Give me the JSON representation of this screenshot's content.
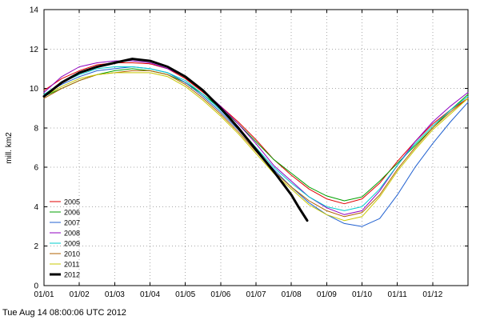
{
  "figure": {
    "timestamp": "Tue Aug 14 08:00:06 UTC 2012"
  },
  "chart_data": {
    "type": "line",
    "title": "",
    "xlabel": "",
    "ylabel": "mill. km2",
    "ylim": [
      0,
      14
    ],
    "ytick_step": 2,
    "xlim": [
      0,
      12
    ],
    "xtick_labels": [
      "01/01",
      "01/02",
      "01/03",
      "01/04",
      "01/05",
      "01/06",
      "01/07",
      "01/08",
      "01/09",
      "01/10",
      "01/11",
      "01/12"
    ],
    "grid": "dotted",
    "legend_position": "lower-left",
    "series": [
      {
        "name": "2005",
        "color": "#e00000",
        "width": 1,
        "x": [
          0,
          0.5,
          1,
          1.5,
          2,
          2.5,
          3,
          3.5,
          4,
          4.5,
          5,
          5.5,
          6,
          6.5,
          7,
          7.5,
          8,
          8.5,
          9,
          9.5,
          10,
          10.5,
          11,
          11.5,
          12
        ],
        "y": [
          9.9,
          10.5,
          10.9,
          11.2,
          11.3,
          11.3,
          11.25,
          11.0,
          10.5,
          9.8,
          9.1,
          8.3,
          7.4,
          6.4,
          5.6,
          4.9,
          4.4,
          4.15,
          4.4,
          5.2,
          6.3,
          7.3,
          8.2,
          8.9,
          9.5
        ]
      },
      {
        "name": "2006",
        "color": "#00a000",
        "width": 1,
        "x": [
          0,
          0.5,
          1,
          1.5,
          2,
          2.5,
          3,
          3.5,
          4,
          4.5,
          5,
          5.5,
          6,
          6.5,
          7,
          7.5,
          8,
          8.5,
          9,
          9.5,
          10,
          10.5,
          11,
          11.5,
          12
        ],
        "y": [
          9.6,
          10.0,
          10.4,
          10.7,
          10.9,
          11.0,
          10.9,
          10.7,
          10.3,
          9.7,
          9.0,
          8.2,
          7.3,
          6.4,
          5.7,
          5.0,
          4.55,
          4.3,
          4.5,
          5.3,
          6.2,
          7.1,
          8.0,
          8.9,
          9.7
        ]
      },
      {
        "name": "2007",
        "color": "#2060d0",
        "width": 1,
        "x": [
          0,
          0.5,
          1,
          1.5,
          2,
          2.5,
          3,
          3.5,
          4,
          4.5,
          5,
          5.5,
          6,
          6.5,
          7,
          7.5,
          8,
          8.5,
          9,
          9.5,
          10,
          10.5,
          11,
          11.5,
          12
        ],
        "y": [
          9.7,
          10.2,
          10.6,
          10.9,
          11.0,
          11.1,
          11.0,
          10.8,
          10.3,
          9.6,
          8.8,
          7.9,
          6.9,
          5.9,
          5.0,
          4.2,
          3.6,
          3.15,
          3.0,
          3.4,
          4.6,
          6.0,
          7.2,
          8.3,
          9.3
        ]
      },
      {
        "name": "2008",
        "color": "#9000c0",
        "width": 1,
        "x": [
          0,
          0.5,
          1,
          1.5,
          2,
          2.5,
          3,
          3.5,
          4,
          4.5,
          5,
          5.5,
          6,
          6.5,
          7,
          7.5,
          8,
          8.5,
          9,
          9.5,
          10,
          10.5,
          11,
          11.5,
          12
        ],
        "y": [
          9.8,
          10.6,
          11.1,
          11.3,
          11.4,
          11.4,
          11.3,
          11.0,
          10.6,
          9.9,
          9.1,
          8.2,
          7.2,
          6.1,
          5.3,
          4.5,
          3.95,
          3.6,
          3.8,
          4.8,
          6.1,
          7.3,
          8.3,
          9.1,
          9.8
        ]
      },
      {
        "name": "2009",
        "color": "#00cccc",
        "width": 1,
        "x": [
          0,
          0.5,
          1,
          1.5,
          2,
          2.5,
          3,
          3.5,
          4,
          4.5,
          5,
          5.5,
          6,
          6.5,
          7,
          7.5,
          8,
          8.5,
          9,
          9.5,
          10,
          10.5,
          11,
          11.5,
          12
        ],
        "y": [
          9.7,
          10.3,
          10.7,
          11.0,
          11.1,
          11.1,
          11.0,
          10.8,
          10.4,
          9.7,
          8.9,
          8.0,
          7.0,
          6.0,
          5.2,
          4.5,
          4.0,
          3.8,
          4.0,
          4.9,
          6.1,
          7.2,
          8.1,
          8.9,
          9.6
        ]
      },
      {
        "name": "2010",
        "color": "#b06000",
        "width": 1,
        "x": [
          0,
          0.5,
          1,
          1.5,
          2,
          2.5,
          3,
          3.5,
          4,
          4.5,
          5,
          5.5,
          6,
          6.5,
          7,
          7.5,
          8,
          8.5,
          9,
          9.5,
          10,
          10.5,
          11,
          11.5,
          12
        ],
        "y": [
          9.5,
          10.0,
          10.4,
          10.7,
          10.8,
          10.9,
          10.9,
          10.7,
          10.2,
          9.5,
          8.7,
          7.8,
          6.8,
          5.8,
          5.0,
          4.3,
          3.8,
          3.5,
          3.7,
          4.6,
          5.9,
          7.0,
          8.0,
          8.8,
          9.5
        ]
      },
      {
        "name": "2011",
        "color": "#c8c800",
        "width": 1,
        "x": [
          0,
          0.5,
          1,
          1.5,
          2,
          2.5,
          3,
          3.5,
          4,
          4.5,
          5,
          5.5,
          6,
          6.5,
          7,
          7.5,
          8,
          8.5,
          9,
          9.5,
          10,
          10.5,
          11,
          11.5,
          12
        ],
        "y": [
          9.6,
          10.1,
          10.5,
          10.7,
          10.8,
          10.8,
          10.8,
          10.6,
          10.1,
          9.4,
          8.6,
          7.7,
          6.7,
          5.7,
          4.9,
          4.1,
          3.6,
          3.3,
          3.5,
          4.5,
          5.8,
          6.9,
          7.9,
          8.7,
          9.5
        ]
      },
      {
        "name": "2012",
        "color": "#000000",
        "width": 3,
        "x": [
          0,
          0.5,
          1,
          1.5,
          2,
          2.5,
          3,
          3.5,
          4,
          4.5,
          5,
          5.5,
          6,
          6.5,
          7,
          7.2,
          7.45
        ],
        "y": [
          9.6,
          10.3,
          10.8,
          11.1,
          11.3,
          11.5,
          11.4,
          11.1,
          10.6,
          9.9,
          9.0,
          8.0,
          6.9,
          5.8,
          4.6,
          4.0,
          3.3
        ]
      }
    ]
  }
}
